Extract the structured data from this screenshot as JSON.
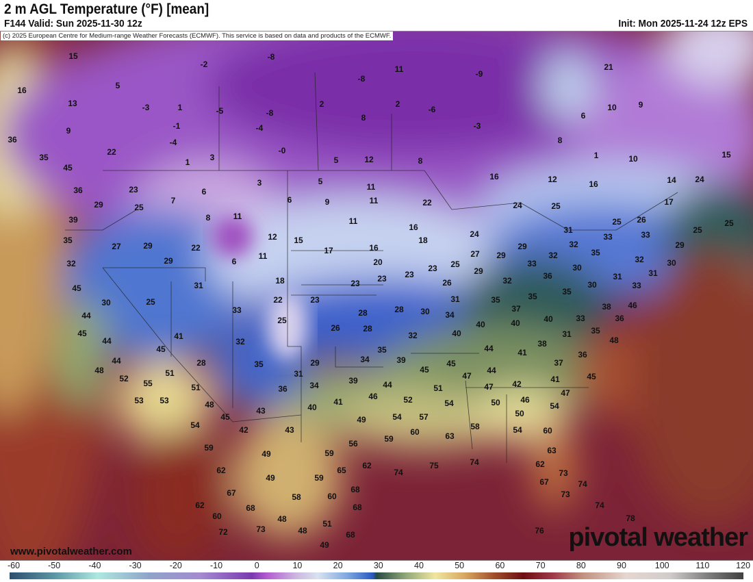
{
  "header": {
    "title": "2 m AGL Temperature (°F) [mean]",
    "valid": "F144 Valid: Sun 2025-11-30 12z",
    "init": "Init: Mon 2025-11-24 12z EPS"
  },
  "copyright": "(c) 2025 European Centre for Medium-range Weather Forecasts (ECMWF). This service is based on data and products of the ECMWF.",
  "watermark_url": "www.pivotalweather.com",
  "logo": "pivotal weather",
  "colorbar": {
    "ticks": [
      "-60",
      "-50",
      "-40",
      "-30",
      "-20",
      "-10",
      "0",
      "10",
      "20",
      "30",
      "40",
      "50",
      "60",
      "70",
      "80",
      "90",
      "100",
      "110",
      "120"
    ]
  },
  "temperatures": [
    "15",
    "-8",
    "5",
    "-2",
    "-8",
    "11",
    "-9",
    "21",
    "16",
    "13",
    "-3",
    "1",
    "-5",
    "-8",
    "2",
    "2",
    "-6",
    "6",
    "10",
    "9",
    "9",
    "-1",
    "-4",
    "8",
    "-3",
    "36",
    "-4",
    "-0",
    "8",
    "22",
    "35",
    "1",
    "3",
    "5",
    "12",
    "8",
    "1",
    "10",
    "15",
    "45",
    "16",
    "12",
    "16",
    "14",
    "24",
    "36",
    "23",
    "6",
    "3",
    "5",
    "11",
    "7",
    "6",
    "9",
    "11",
    "22",
    "24",
    "25",
    "17",
    "29",
    "25",
    "8",
    "11",
    "11",
    "25",
    "26",
    "25",
    "25",
    "39",
    "16",
    "24",
    "31",
    "33",
    "35",
    "27",
    "29",
    "22",
    "12",
    "15",
    "17",
    "16",
    "18",
    "29",
    "27",
    "29",
    "32",
    "33",
    "29",
    "35",
    "32",
    "29",
    "6",
    "11",
    "20",
    "25",
    "23",
    "23",
    "32",
    "33",
    "30",
    "32",
    "30",
    "31",
    "29",
    "36",
    "45",
    "31",
    "18",
    "23",
    "23",
    "26",
    "32",
    "30",
    "31",
    "33",
    "30",
    "25",
    "33",
    "22",
    "23",
    "31",
    "35",
    "35",
    "35",
    "46",
    "44",
    "25",
    "28",
    "28",
    "30",
    "34",
    "37",
    "40",
    "40",
    "40",
    "33",
    "38",
    "36",
    "45",
    "26",
    "28",
    "32",
    "40",
    "31",
    "35",
    "48",
    "41",
    "32",
    "44",
    "45",
    "35",
    "39",
    "44",
    "41",
    "38",
    "36",
    "37",
    "44",
    "28",
    "35",
    "29",
    "34",
    "45",
    "45",
    "48",
    "52",
    "51",
    "55",
    "31",
    "34",
    "47",
    "44",
    "42",
    "41",
    "45",
    "51",
    "36",
    "39",
    "44",
    "51",
    "47",
    "53",
    "53",
    "48",
    "41",
    "46",
    "52",
    "54",
    "50",
    "46",
    "47",
    "45",
    "43",
    "40",
    "54",
    "49",
    "54",
    "57",
    "50",
    "54",
    "42",
    "43",
    "56",
    "59",
    "60",
    "63",
    "58",
    "54",
    "60",
    "59",
    "49",
    "59",
    "74",
    "75",
    "74",
    "63",
    "62",
    "49",
    "59",
    "65",
    "62",
    "62",
    "73",
    "67",
    "67",
    "58",
    "60",
    "68",
    "73",
    "74",
    "68",
    "62",
    "68",
    "74",
    "60",
    "48",
    "51",
    "78",
    "72",
    "73",
    "48",
    "68",
    "76",
    "49"
  ]
}
